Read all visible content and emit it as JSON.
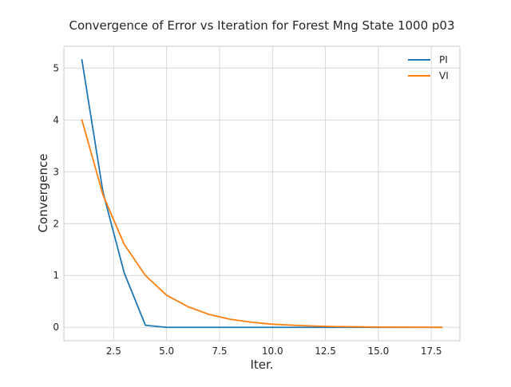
{
  "chart_data": {
    "type": "line",
    "title": "Convergence of Error vs Iteration for Forest Mng State 1000 p03",
    "xlabel": "Iter.",
    "ylabel": "Convergence",
    "xlim": [
      0.15,
      18.85
    ],
    "ylim": [
      -0.258,
      5.42
    ],
    "x_ticks": [
      2.5,
      5.0,
      7.5,
      10.0,
      12.5,
      15.0,
      17.5
    ],
    "x_tick_labels": [
      "2.5",
      "5.0",
      "7.5",
      "10.0",
      "12.5",
      "15.0",
      "17.5"
    ],
    "y_ticks": [
      0,
      1,
      2,
      3,
      4,
      5
    ],
    "y_tick_labels": [
      "0",
      "1",
      "2",
      "3",
      "4",
      "5"
    ],
    "grid": true,
    "legend_position": "top-right",
    "series": [
      {
        "name": "PI",
        "color": "#1f77b4",
        "x": [
          1,
          2,
          3,
          4,
          5,
          6,
          7,
          8,
          9,
          10,
          11,
          12,
          13,
          14,
          15,
          16,
          17,
          18
        ],
        "values": [
          5.16,
          2.6,
          1.05,
          0.04,
          0.0,
          0.0,
          0.0,
          0.0,
          0.0,
          0.0,
          0.0,
          0.0,
          0.0,
          0.0,
          0.0,
          0.0,
          0.0,
          0.0
        ]
      },
      {
        "name": "VI",
        "color": "#ff7f0e",
        "x": [
          1,
          2,
          3,
          4,
          5,
          6,
          7,
          8,
          9,
          10,
          11,
          12,
          13,
          14,
          15,
          16,
          17,
          18
        ],
        "values": [
          4.0,
          2.55,
          1.6,
          1.0,
          0.62,
          0.4,
          0.25,
          0.155,
          0.1,
          0.06,
          0.04,
          0.025,
          0.015,
          0.01,
          0.006,
          0.004,
          0.002,
          0.001
        ]
      }
    ]
  }
}
